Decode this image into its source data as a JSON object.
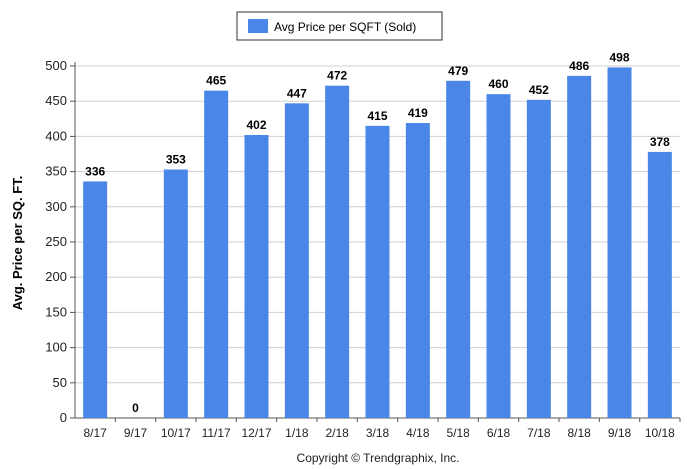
{
  "chart_data": {
    "type": "bar",
    "categories": [
      "8/17",
      "9/17",
      "10/17",
      "11/17",
      "12/17",
      "1/18",
      "2/18",
      "3/18",
      "4/18",
      "5/18",
      "6/18",
      "7/18",
      "8/18",
      "9/18",
      "10/18"
    ],
    "series": [
      {
        "name": "Avg Price per SQFT (Sold)",
        "values": [
          336,
          0,
          353,
          465,
          402,
          447,
          472,
          415,
          419,
          479,
          460,
          452,
          486,
          498,
          378
        ]
      }
    ],
    "ylabel": "Avg. Price per SQ. FT.",
    "xlabel": "",
    "ylim": [
      0,
      500
    ],
    "yticks": [
      0,
      50,
      100,
      150,
      200,
      250,
      300,
      350,
      400,
      450,
      500
    ],
    "grid": true,
    "legend_position": "top-center",
    "data_labels": true,
    "bar_color": "#4a86e8"
  },
  "footer": {
    "copyright": "Copyright © Trendgraphix, Inc."
  }
}
